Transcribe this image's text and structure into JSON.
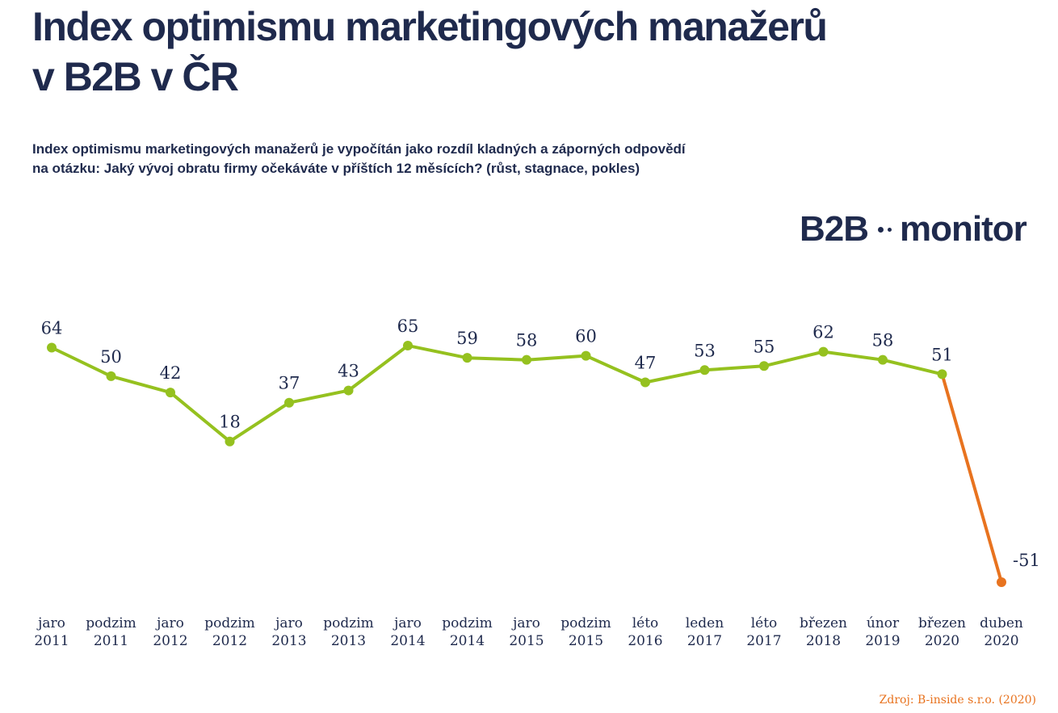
{
  "header": {
    "title_line1": "Index optimismu marketingových manažerů",
    "title_line2": "v B2B v ČR",
    "subtitle_line1": "Index optimismu marketingových manažerů je vypočítán jako rozdíl kladných a záporných odpovědí",
    "subtitle_line2": "na otázku: Jaký vývoj obratu firmy očekáváte v příštích 12 měsících? (růst, stagnace, pokles)"
  },
  "logo": {
    "part1": "B2B",
    "part2": "monitor"
  },
  "source": "Zdroj: B-inside s.r.o. (2020)",
  "colors": {
    "text": "#1f2a4d",
    "series": "#95c11f",
    "highlight": "#e8731f"
  },
  "chart_data": {
    "type": "line",
    "title": "Index optimismu marketingových manažerů v B2B v ČR",
    "categories": [
      [
        "jaro",
        "2011"
      ],
      [
        "podzim",
        "2011"
      ],
      [
        "jaro",
        "2012"
      ],
      [
        "podzim",
        "2012"
      ],
      [
        "jaro",
        "2013"
      ],
      [
        "podzim",
        "2013"
      ],
      [
        "jaro",
        "2014"
      ],
      [
        "podzim",
        "2014"
      ],
      [
        "jaro",
        "2015"
      ],
      [
        "podzim",
        "2015"
      ],
      [
        "léto",
        "2016"
      ],
      [
        "leden",
        "2017"
      ],
      [
        "léto",
        "2017"
      ],
      [
        "březen",
        "2018"
      ],
      [
        "únor",
        "2019"
      ],
      [
        "březen",
        "2020"
      ],
      [
        "duben",
        "2020"
      ]
    ],
    "values": [
      64,
      50,
      42,
      18,
      37,
      43,
      65,
      59,
      58,
      60,
      47,
      53,
      55,
      62,
      58,
      51,
      -51
    ],
    "value_labels": [
      "64",
      "50",
      "42",
      "18",
      "37",
      "43",
      "65",
      "59",
      "58",
      "60",
      "47",
      "53",
      "55",
      "62",
      "58",
      "51",
      "-51"
    ],
    "highlight_last_segment": true,
    "axes_visible": false,
    "grid": false,
    "legend": "none"
  }
}
